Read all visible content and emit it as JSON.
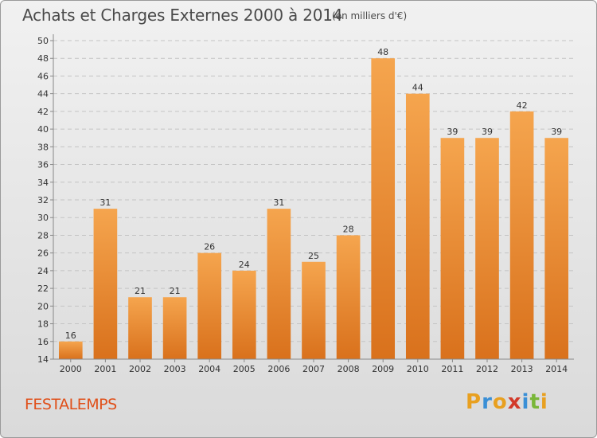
{
  "header": {
    "title": "Achats et Charges Externes 2000 à 2014",
    "subtitle": "(en milliers d'€)"
  },
  "footer": {
    "commune": "FESTALEMPS",
    "logo_text": "Proxiti"
  },
  "colors": {
    "bar_light": "#f5a54e",
    "bar_dark": "#d9711c",
    "title": "#4a4a4a",
    "commune": "#e0501a",
    "logo_letters": [
      "#e8a020",
      "#3a8fd6",
      "#e8a020",
      "#d23a2a",
      "#3a8fd6",
      "#7ab73a",
      "#e8a020"
    ]
  },
  "chart_data": {
    "type": "bar",
    "title": "Achats et Charges Externes 2000 à 2014",
    "subtitle": "(en milliers d'€)",
    "categories": [
      "2000",
      "2001",
      "2002",
      "2003",
      "2004",
      "2005",
      "2006",
      "2007",
      "2008",
      "2009",
      "2010",
      "2011",
      "2012",
      "2013",
      "2014"
    ],
    "values": [
      16,
      31,
      21,
      21,
      26,
      24,
      31,
      25,
      28,
      48,
      44,
      39,
      39,
      42,
      39
    ],
    "ylim": [
      14,
      50
    ],
    "yticks": [
      14,
      16,
      18,
      20,
      22,
      24,
      26,
      28,
      30,
      32,
      34,
      36,
      38,
      40,
      42,
      44,
      46,
      48,
      50
    ],
    "grid": true,
    "xlabel": "",
    "ylabel": ""
  }
}
